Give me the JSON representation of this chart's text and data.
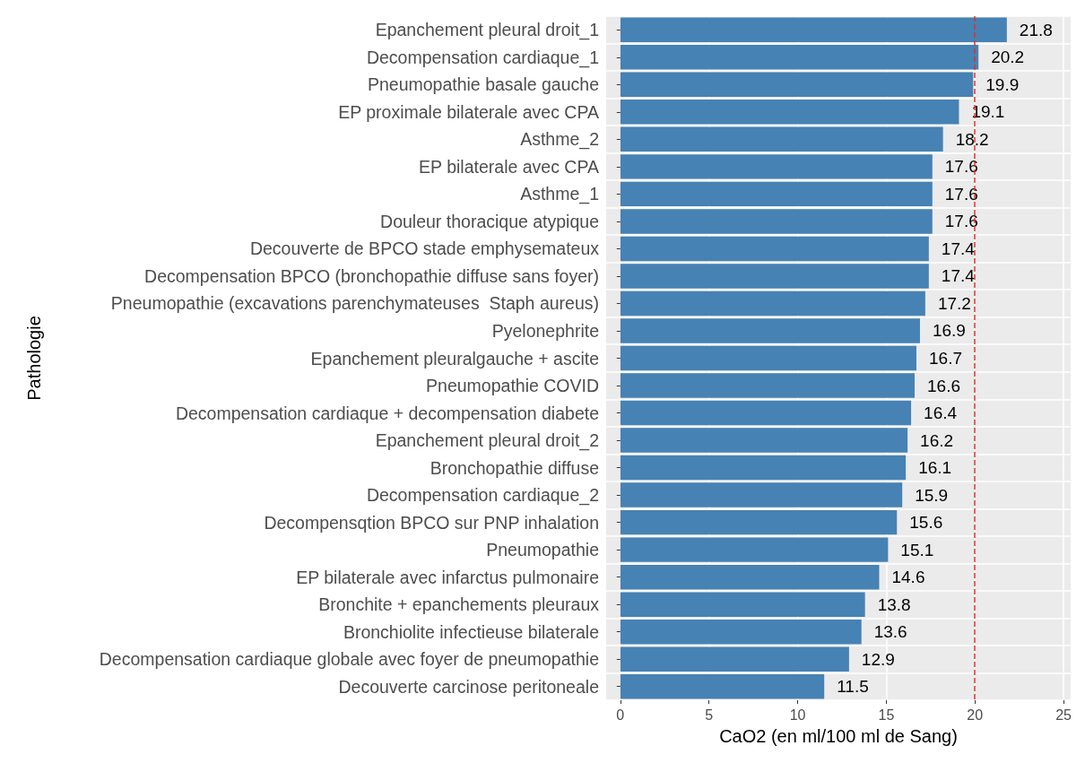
{
  "chart_data": {
    "type": "bar",
    "orientation": "horizontal",
    "xlabel": "CaO2 (en ml/100 ml de Sang)",
    "ylabel": "Pathologie",
    "categories": [
      "Epanchement pleural droit_1",
      "Decompensation cardiaque_1",
      "Pneumopathie basale gauche",
      "EP proximale bilaterale avec CPA",
      "Asthme_2",
      "EP bilaterale avec CPA",
      "Asthme_1",
      "Douleur thoracique atypique",
      "Decouverte de BPCO stade emphysemateux",
      "Decompensation BPCO (bronchopathie diffuse sans foyer)",
      "Pneumopathie (excavations parenchymateuses  Staph aureus)",
      "Pyelonephrite",
      "Epanchement pleuralgauche + ascite",
      "Pneumopathie COVID",
      "Decompensation cardiaque + decompensation diabete",
      "Epanchement pleural droit_2",
      "Bronchopathie diffuse",
      "Decompensation cardiaque_2",
      "Decompensqtion BPCO sur PNP inhalation",
      "Pneumopathie",
      "EP bilaterale avec infarctus pulmonaire",
      "Bronchite + epanchements pleuraux",
      "Bronchiolite infectieuse bilaterale",
      "Decompensation cardiaque globale avec foyer de pneumopathie",
      "Decouverte carcinose peritoneale"
    ],
    "values": [
      21.8,
      20.2,
      19.9,
      19.1,
      18.2,
      17.6,
      17.6,
      17.6,
      17.4,
      17.4,
      17.2,
      16.9,
      16.7,
      16.6,
      16.4,
      16.2,
      16.1,
      15.9,
      15.6,
      15.1,
      14.6,
      13.8,
      13.6,
      12.9,
      11.5
    ],
    "color": "#4682b4",
    "data_labels": true,
    "xlim": [
      -0.8,
      25.4
    ],
    "xticks": [
      0,
      5,
      10,
      15,
      20,
      25
    ],
    "grid": true,
    "ref_lines": [
      {
        "axis": "x",
        "value": 20,
        "color": "#e0302a",
        "line_style": "dashed"
      }
    ]
  }
}
